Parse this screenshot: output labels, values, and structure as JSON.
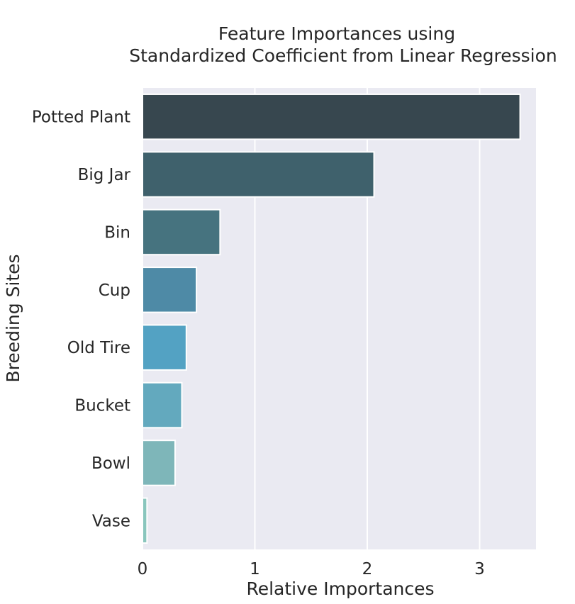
{
  "chart_data": {
    "type": "bar",
    "orientation": "horizontal",
    "title_lines": [
      "Feature Importances using",
      "Standardized Coefficient from Linear Regression"
    ],
    "xlabel": "Relative Importances",
    "ylabel": "Breeding Sites",
    "categories": [
      "Potted Plant",
      "Big Jar",
      "Bin",
      "Cup",
      "Old Tire",
      "Bucket",
      "Bowl",
      "Vase"
    ],
    "values": [
      3.36,
      2.06,
      0.69,
      0.48,
      0.39,
      0.35,
      0.29,
      0.04
    ],
    "xlim": [
      0,
      3.5
    ],
    "xticks": [
      0,
      1,
      2,
      3
    ],
    "grid": true,
    "colors": [
      "#37474f",
      "#3f616c",
      "#46737f",
      "#4e8aa6",
      "#53a2c3",
      "#63a9be",
      "#7eb6b9",
      "#8ac6bd"
    ],
    "background": "#eaeaf2"
  }
}
